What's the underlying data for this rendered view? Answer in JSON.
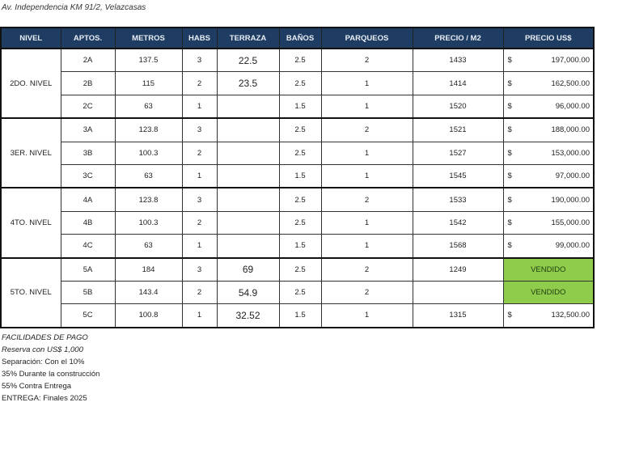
{
  "address": "Av. Independencia KM 91/2, Velazcasas",
  "table": {
    "headers": [
      "NIVEL",
      "APTOS.",
      "METROS",
      "HABS",
      "TERRAZA",
      "BAÑOS",
      "PARQUEOS",
      "PRECIO / M2",
      "PRECIO US$"
    ],
    "currency_symbol": "$",
    "sold_color": "#8fcc4c",
    "header_color": "#1f3c63",
    "groups": [
      {
        "nivel": "2DO. NIVEL",
        "rows": [
          {
            "apto": "2A",
            "metros": "137.5",
            "habs": "3",
            "terraza": "22.5",
            "banos": "2.5",
            "parqueos": "2",
            "precio_m2": "1433",
            "precio": "197,000.00"
          },
          {
            "apto": "2B",
            "metros": "115",
            "habs": "2",
            "terraza": "23.5",
            "banos": "2.5",
            "parqueos": "1",
            "precio_m2": "1414",
            "precio": "162,500.00"
          },
          {
            "apto": "2C",
            "metros": "63",
            "habs": "1",
            "terraza": "",
            "banos": "1.5",
            "parqueos": "1",
            "precio_m2": "1520",
            "precio": "96,000.00"
          }
        ]
      },
      {
        "nivel": "3ER. NIVEL",
        "rows": [
          {
            "apto": "3A",
            "metros": "123.8",
            "habs": "3",
            "terraza": "",
            "banos": "2.5",
            "parqueos": "2",
            "precio_m2": "1521",
            "precio": "188,000.00"
          },
          {
            "apto": "3B",
            "metros": "100.3",
            "habs": "2",
            "terraza": "",
            "banos": "2.5",
            "parqueos": "1",
            "precio_m2": "1527",
            "precio": "153,000.00"
          },
          {
            "apto": "3C",
            "metros": "63",
            "habs": "1",
            "terraza": "",
            "banos": "1.5",
            "parqueos": "1",
            "precio_m2": "1545",
            "precio": "97,000.00"
          }
        ]
      },
      {
        "nivel": "4TO. NIVEL",
        "rows": [
          {
            "apto": "4A",
            "metros": "123.8",
            "habs": "3",
            "terraza": "",
            "banos": "2.5",
            "parqueos": "2",
            "precio_m2": "1533",
            "precio": "190,000.00"
          },
          {
            "apto": "4B",
            "metros": "100.3",
            "habs": "2",
            "terraza": "",
            "banos": "2.5",
            "parqueos": "1",
            "precio_m2": "1542",
            "precio": "155,000.00"
          },
          {
            "apto": "4C",
            "metros": "63",
            "habs": "1",
            "terraza": "",
            "banos": "1.5",
            "parqueos": "1",
            "precio_m2": "1568",
            "precio": "99,000.00"
          }
        ]
      },
      {
        "nivel": "5TO. NIVEL",
        "rows": [
          {
            "apto": "5A",
            "metros": "184",
            "habs": "3",
            "terraza": "69",
            "banos": "2.5",
            "parqueos": "2",
            "precio_m2": "1249",
            "sold": "VENDIDO"
          },
          {
            "apto": "5B",
            "metros": "143.4",
            "habs": "2",
            "terraza": "54.9",
            "banos": "2.5",
            "parqueos": "2",
            "precio_m2": "",
            "sold": "VENDIDO"
          },
          {
            "apto": "5C",
            "metros": "100.8",
            "habs": "1",
            "terraza": "32.52",
            "banos": "1.5",
            "parqueos": "1",
            "precio_m2": "1315",
            "precio": "132,500.00"
          }
        ]
      }
    ]
  },
  "notes": {
    "title": "FACILIDADES DE PAGO",
    "reserve": "Reserva con US$ 1,000",
    "lines": [
      "Separación: Con el 10%",
      "35% Durante la construcción",
      "55% Contra Entrega",
      "ENTREGA: Finales 2025"
    ]
  }
}
